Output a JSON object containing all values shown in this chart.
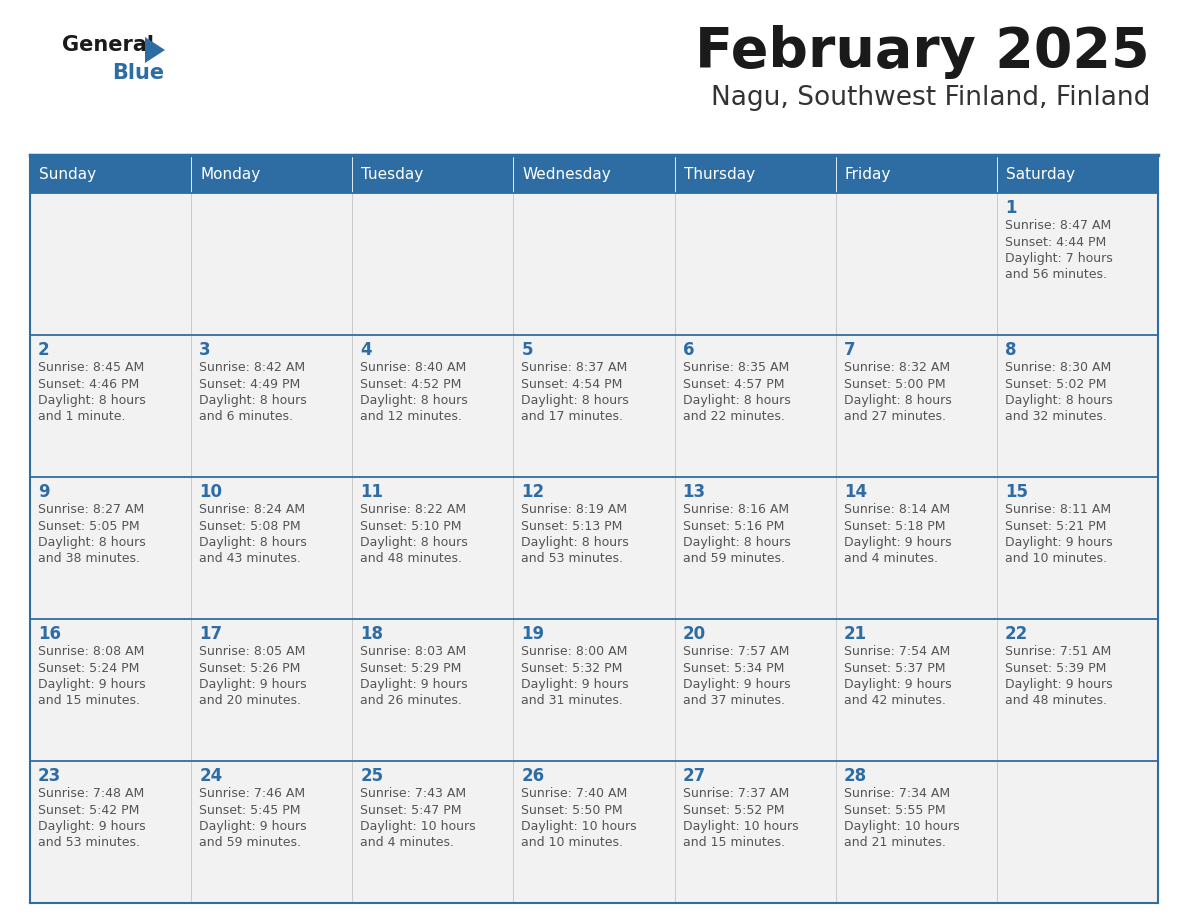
{
  "title": "February 2025",
  "subtitle": "Nagu, Southwest Finland, Finland",
  "days_of_week": [
    "Sunday",
    "Monday",
    "Tuesday",
    "Wednesday",
    "Thursday",
    "Friday",
    "Saturday"
  ],
  "header_bg": "#2E6DA4",
  "header_text": "#FFFFFF",
  "cell_bg_even": "#F2F2F2",
  "cell_bg_odd": "#FFFFFF",
  "day_number_color": "#2E6DA4",
  "text_color": "#555555",
  "line_color": "#2E6DA4",
  "title_color": "#1a1a1a",
  "subtitle_color": "#333333",
  "logo_general_color": "#1a1a1a",
  "logo_blue_color": "#2E6DA4",
  "logo_triangle_color": "#2E6DA4",
  "calendar": [
    [
      null,
      null,
      null,
      null,
      null,
      null,
      {
        "day": 1,
        "sunrise": "8:47 AM",
        "sunset": "4:44 PM",
        "daylight": "7 hours\nand 56 minutes."
      }
    ],
    [
      {
        "day": 2,
        "sunrise": "8:45 AM",
        "sunset": "4:46 PM",
        "daylight": "8 hours\nand 1 minute."
      },
      {
        "day": 3,
        "sunrise": "8:42 AM",
        "sunset": "4:49 PM",
        "daylight": "8 hours\nand 6 minutes."
      },
      {
        "day": 4,
        "sunrise": "8:40 AM",
        "sunset": "4:52 PM",
        "daylight": "8 hours\nand 12 minutes."
      },
      {
        "day": 5,
        "sunrise": "8:37 AM",
        "sunset": "4:54 PM",
        "daylight": "8 hours\nand 17 minutes."
      },
      {
        "day": 6,
        "sunrise": "8:35 AM",
        "sunset": "4:57 PM",
        "daylight": "8 hours\nand 22 minutes."
      },
      {
        "day": 7,
        "sunrise": "8:32 AM",
        "sunset": "5:00 PM",
        "daylight": "8 hours\nand 27 minutes."
      },
      {
        "day": 8,
        "sunrise": "8:30 AM",
        "sunset": "5:02 PM",
        "daylight": "8 hours\nand 32 minutes."
      }
    ],
    [
      {
        "day": 9,
        "sunrise": "8:27 AM",
        "sunset": "5:05 PM",
        "daylight": "8 hours\nand 38 minutes."
      },
      {
        "day": 10,
        "sunrise": "8:24 AM",
        "sunset": "5:08 PM",
        "daylight": "8 hours\nand 43 minutes."
      },
      {
        "day": 11,
        "sunrise": "8:22 AM",
        "sunset": "5:10 PM",
        "daylight": "8 hours\nand 48 minutes."
      },
      {
        "day": 12,
        "sunrise": "8:19 AM",
        "sunset": "5:13 PM",
        "daylight": "8 hours\nand 53 minutes."
      },
      {
        "day": 13,
        "sunrise": "8:16 AM",
        "sunset": "5:16 PM",
        "daylight": "8 hours\nand 59 minutes."
      },
      {
        "day": 14,
        "sunrise": "8:14 AM",
        "sunset": "5:18 PM",
        "daylight": "9 hours\nand 4 minutes."
      },
      {
        "day": 15,
        "sunrise": "8:11 AM",
        "sunset": "5:21 PM",
        "daylight": "9 hours\nand 10 minutes."
      }
    ],
    [
      {
        "day": 16,
        "sunrise": "8:08 AM",
        "sunset": "5:24 PM",
        "daylight": "9 hours\nand 15 minutes."
      },
      {
        "day": 17,
        "sunrise": "8:05 AM",
        "sunset": "5:26 PM",
        "daylight": "9 hours\nand 20 minutes."
      },
      {
        "day": 18,
        "sunrise": "8:03 AM",
        "sunset": "5:29 PM",
        "daylight": "9 hours\nand 26 minutes."
      },
      {
        "day": 19,
        "sunrise": "8:00 AM",
        "sunset": "5:32 PM",
        "daylight": "9 hours\nand 31 minutes."
      },
      {
        "day": 20,
        "sunrise": "7:57 AM",
        "sunset": "5:34 PM",
        "daylight": "9 hours\nand 37 minutes."
      },
      {
        "day": 21,
        "sunrise": "7:54 AM",
        "sunset": "5:37 PM",
        "daylight": "9 hours\nand 42 minutes."
      },
      {
        "day": 22,
        "sunrise": "7:51 AM",
        "sunset": "5:39 PM",
        "daylight": "9 hours\nand 48 minutes."
      }
    ],
    [
      {
        "day": 23,
        "sunrise": "7:48 AM",
        "sunset": "5:42 PM",
        "daylight": "9 hours\nand 53 minutes."
      },
      {
        "day": 24,
        "sunrise": "7:46 AM",
        "sunset": "5:45 PM",
        "daylight": "9 hours\nand 59 minutes."
      },
      {
        "day": 25,
        "sunrise": "7:43 AM",
        "sunset": "5:47 PM",
        "daylight": "10 hours\nand 4 minutes."
      },
      {
        "day": 26,
        "sunrise": "7:40 AM",
        "sunset": "5:50 PM",
        "daylight": "10 hours\nand 10 minutes."
      },
      {
        "day": 27,
        "sunrise": "7:37 AM",
        "sunset": "5:52 PM",
        "daylight": "10 hours\nand 15 minutes."
      },
      {
        "day": 28,
        "sunrise": "7:34 AM",
        "sunset": "5:55 PM",
        "daylight": "10 hours\nand 21 minutes."
      },
      null
    ]
  ]
}
